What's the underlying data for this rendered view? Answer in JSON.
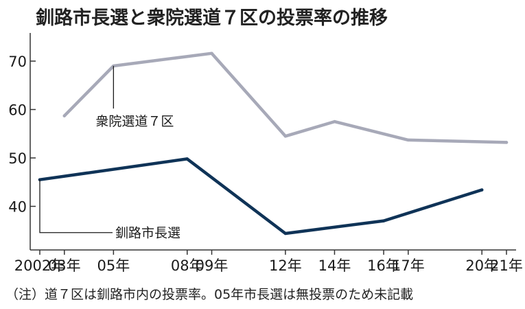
{
  "chart_data": {
    "type": "line",
    "title": "釧路市長選と衆院選道７区の投票率の推移",
    "note": "（注）道７区は釧路市内の投票率。05年市長選は無投票のため未記載",
    "categories": [
      "2002年",
      "03年",
      "05年",
      "08年",
      "09年",
      "12年",
      "14年",
      "16年",
      "17年",
      "20年",
      "21年"
    ],
    "x_years": [
      2002,
      2003,
      2005,
      2008,
      2009,
      2012,
      2014,
      2016,
      2017,
      2020,
      2021
    ],
    "ylim": [
      35,
      75
    ],
    "yticks": [
      40,
      50,
      60,
      70
    ],
    "grid": false,
    "series": [
      {
        "name": "衆院選道７区",
        "color": "#a7a9b8",
        "points": [
          [
            2003,
            58.7
          ],
          [
            2005,
            69.0
          ],
          [
            2009,
            71.6
          ],
          [
            2012,
            54.5
          ],
          [
            2014,
            57.5
          ],
          [
            2017,
            53.7
          ],
          [
            2021,
            53.2
          ]
        ]
      },
      {
        "name": "釧路市長選",
        "color": "#0f3357",
        "points": [
          [
            2002,
            45.5
          ],
          [
            2008,
            49.8
          ],
          [
            2012,
            34.4
          ],
          [
            2016,
            37.0
          ],
          [
            2020,
            43.4
          ]
        ]
      }
    ]
  }
}
